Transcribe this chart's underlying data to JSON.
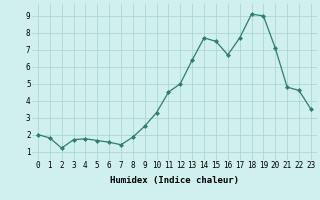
{
  "x": [
    0,
    1,
    2,
    3,
    4,
    5,
    6,
    7,
    8,
    9,
    10,
    11,
    12,
    13,
    14,
    15,
    16,
    17,
    18,
    19,
    20,
    21,
    22,
    23
  ],
  "y": [
    2.0,
    1.8,
    1.2,
    1.7,
    1.75,
    1.65,
    1.55,
    1.4,
    1.85,
    2.5,
    3.3,
    4.5,
    5.0,
    6.4,
    7.7,
    7.5,
    6.7,
    7.7,
    9.1,
    9.0,
    7.1,
    4.8,
    4.6,
    3.5
  ],
  "line_color": "#2e7d6e",
  "marker": "D",
  "marker_size": 2.0,
  "bg_color": "#cff0ec",
  "grid_color": "#aad8d3",
  "xlabel": "Humidex (Indice chaleur)",
  "xlim": [
    -0.5,
    23.5
  ],
  "ylim": [
    0.5,
    9.7
  ],
  "yticks": [
    1,
    2,
    3,
    4,
    5,
    6,
    7,
    8,
    9
  ],
  "xticks": [
    0,
    1,
    2,
    3,
    4,
    5,
    6,
    7,
    8,
    9,
    10,
    11,
    12,
    13,
    14,
    15,
    16,
    17,
    18,
    19,
    20,
    21,
    22,
    23
  ],
  "xlabel_fontsize": 6.5,
  "tick_fontsize": 5.5,
  "linewidth": 0.9
}
